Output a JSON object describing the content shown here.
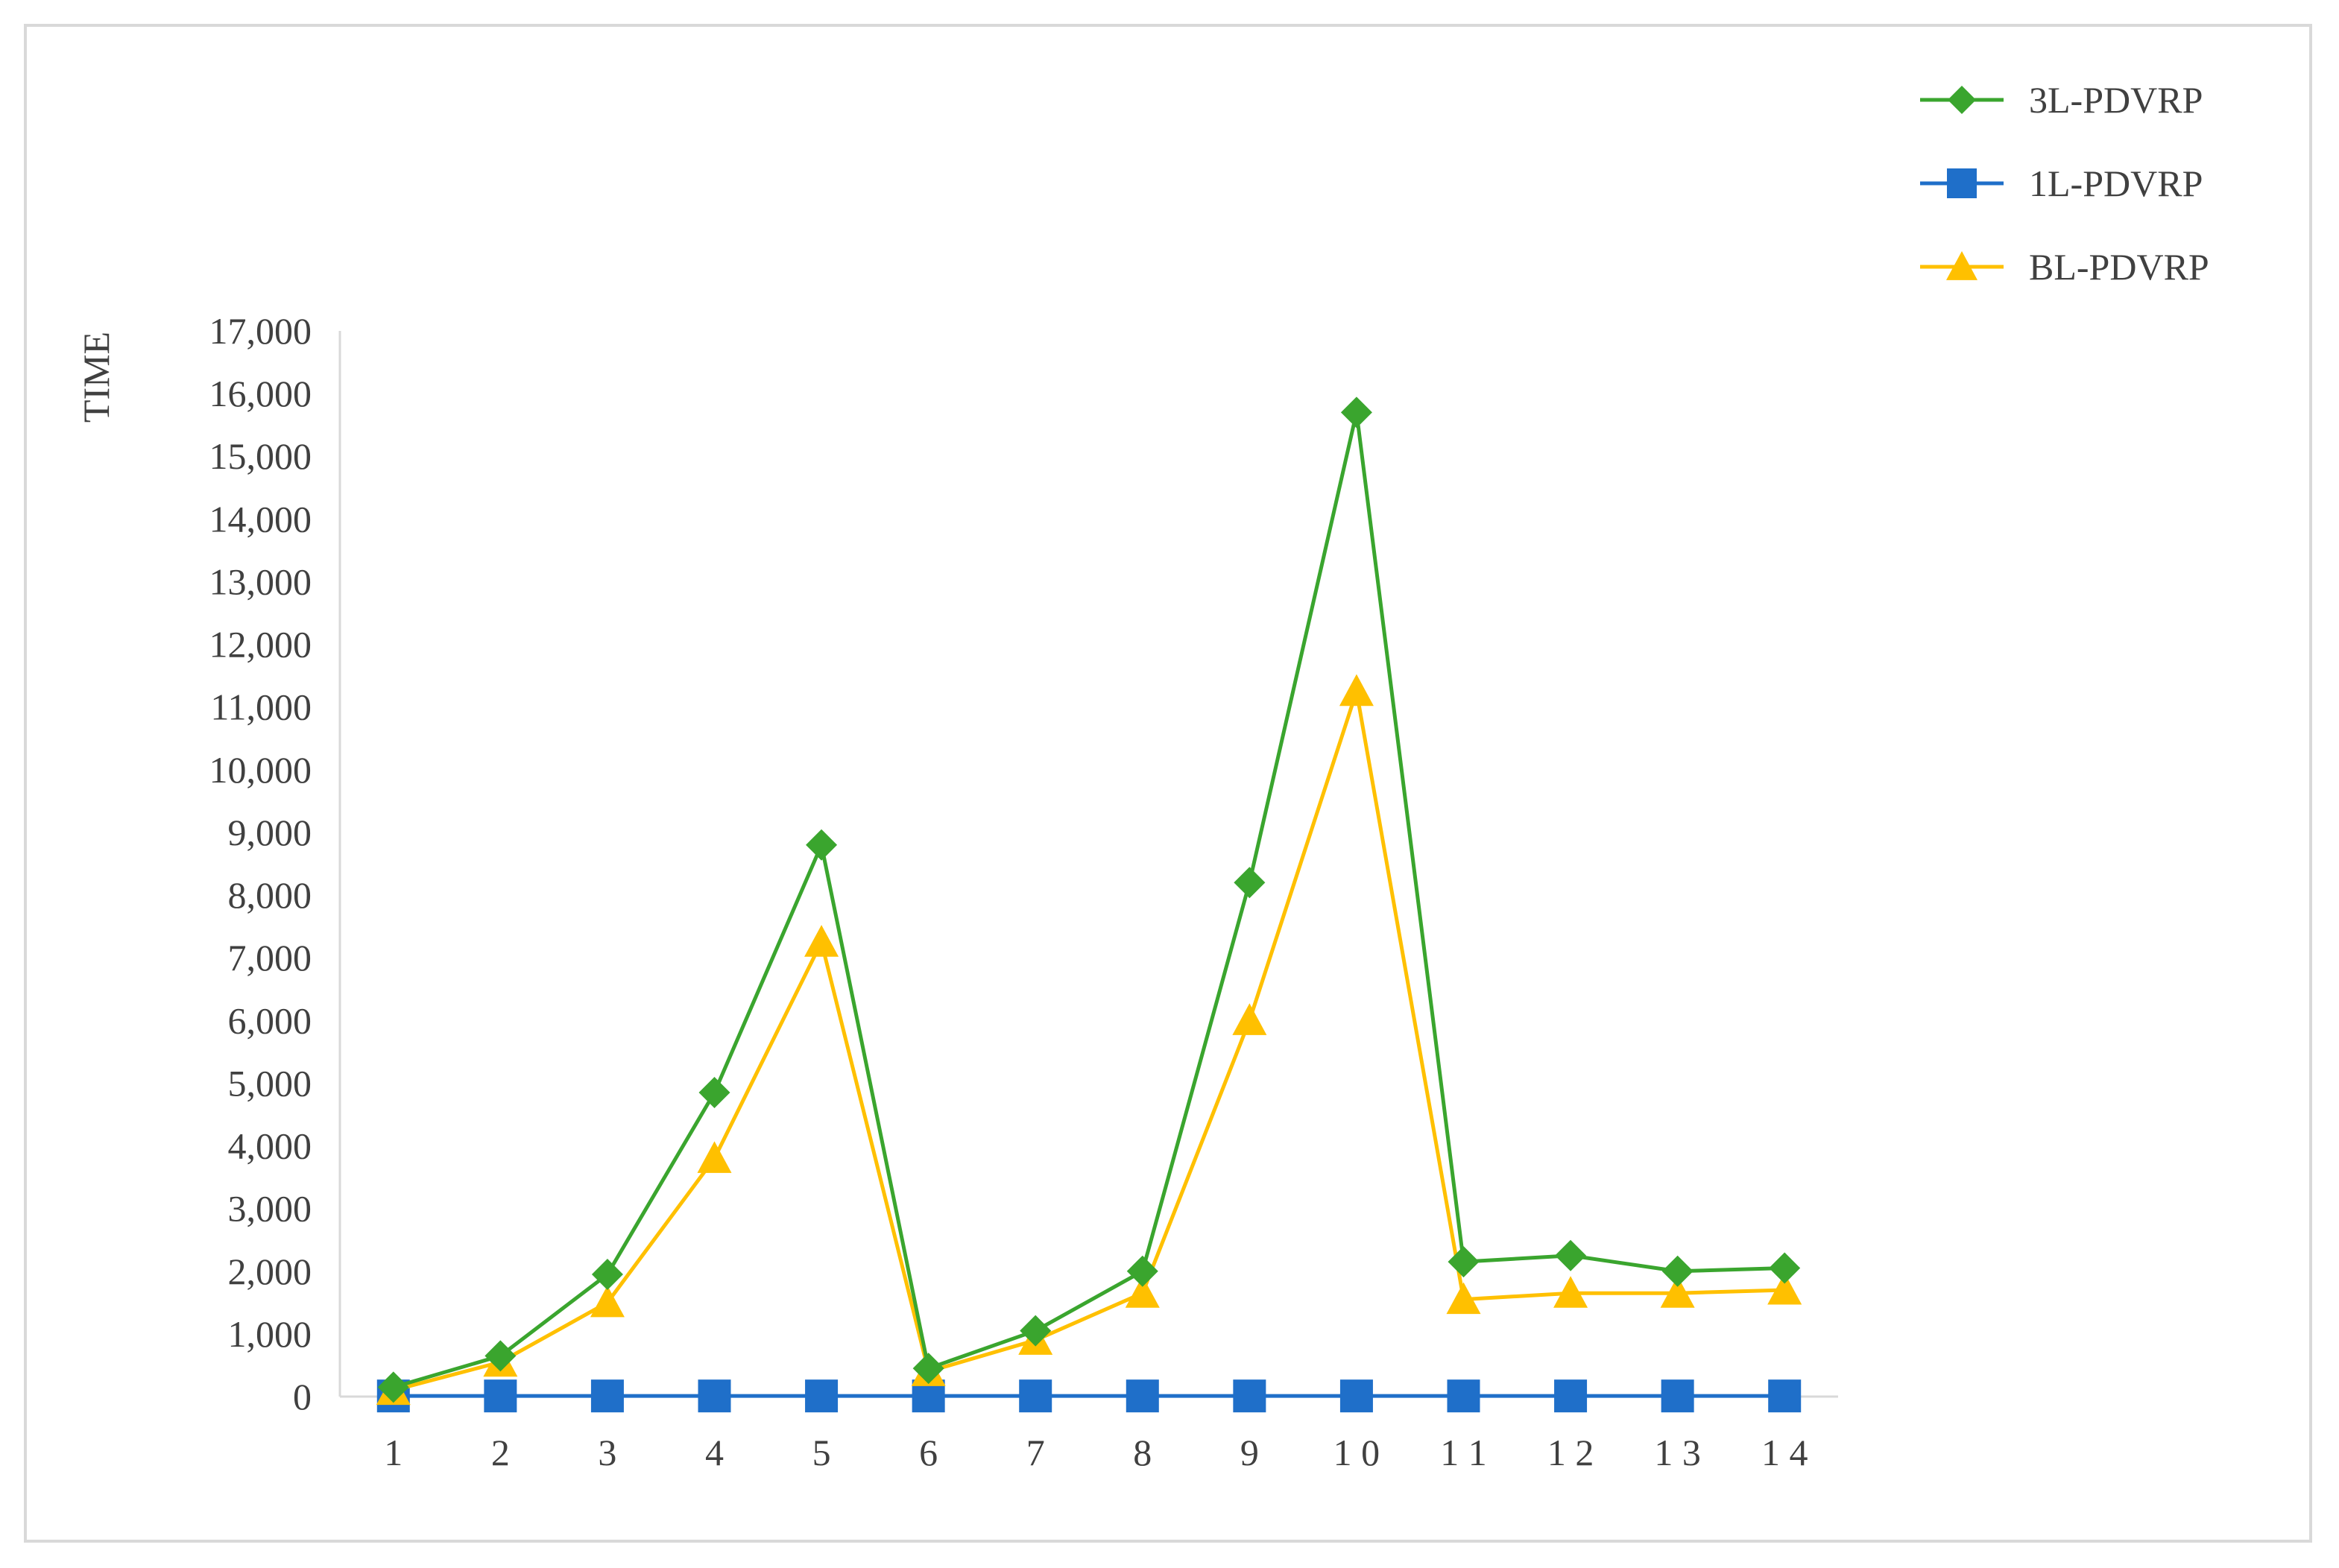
{
  "chart_data": {
    "type": "line",
    "title": "",
    "xlabel": "",
    "ylabel": "TIME",
    "categories": [
      "1",
      "2",
      "3",
      "4",
      "5",
      "6",
      "7",
      "8",
      "9",
      "1 0",
      "1 1",
      "1 2",
      "1 3",
      "1 4"
    ],
    "ylim": [
      0,
      17000
    ],
    "yticks": [
      "0",
      "1,000",
      "2,000",
      "3,000",
      "4,000",
      "5,000",
      "6,000",
      "7,000",
      "8,000",
      "9,000",
      "10,000",
      "11,000",
      "12,000",
      "13,000",
      "14,000",
      "15,000",
      "16,000",
      "17,000"
    ],
    "grid": false,
    "legend_position": "top-right",
    "series": [
      {
        "name": "3L-PDVRP",
        "color": "#3aa52e",
        "marker": "diamond",
        "values": [
          150,
          650,
          1950,
          4850,
          8800,
          450,
          1050,
          2000,
          8200,
          15700,
          2150,
          2250,
          2000,
          2050
        ]
      },
      {
        "name": "1L-PDVRP",
        "color": "#1f6fc9",
        "marker": "square",
        "values": [
          10,
          10,
          10,
          10,
          10,
          10,
          10,
          10,
          10,
          10,
          10,
          10,
          10,
          10
        ]
      },
      {
        "name": "BL-PDVRP",
        "color": "#ffc000",
        "marker": "triangle",
        "values": [
          100,
          550,
          1500,
          3800,
          7250,
          400,
          900,
          1650,
          6000,
          11250,
          1550,
          1650,
          1650,
          1700
        ]
      }
    ]
  }
}
